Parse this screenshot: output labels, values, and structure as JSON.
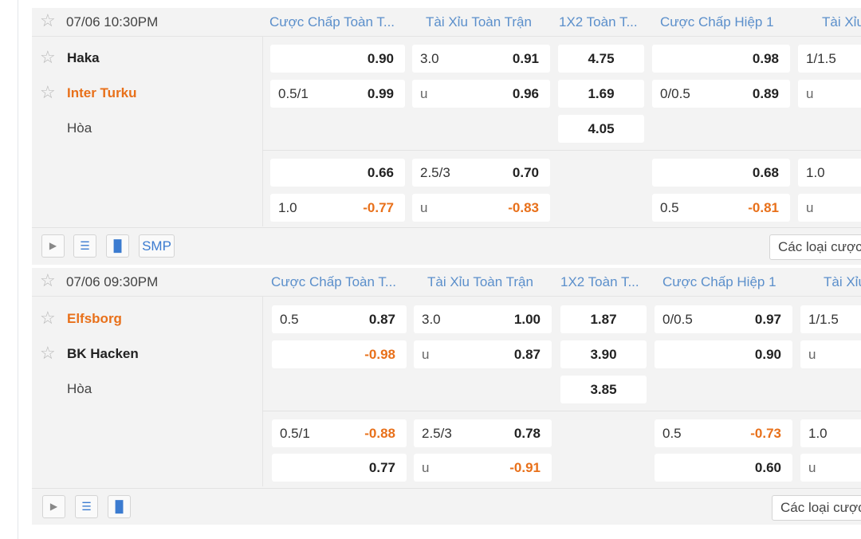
{
  "matches": [
    {
      "time": "07/06 10:30PM",
      "columns": [
        "Cược Chấp Toàn T...",
        "Tài Xỉu Toàn Trận",
        "1X2 Toàn T...",
        "Cược Chấp Hiệp 1",
        "Tài Xỉu"
      ],
      "home": "Haka",
      "away": "Inter Turku",
      "draw": "Hòa",
      "line1": {
        "ah_home": {
          "line": "",
          "odds": "0.90"
        },
        "ah_away": {
          "line": "0.5/1",
          "odds": "0.99"
        },
        "ou_over": {
          "line": "3.0",
          "odds": "0.91"
        },
        "ou_under": {
          "line": "u",
          "odds": "0.96"
        },
        "x12": [
          "4.75",
          "1.69",
          "4.05"
        ],
        "ah1_home": {
          "line": "",
          "odds": "0.98"
        },
        "ah1_away": {
          "line": "0/0.5",
          "odds": "0.89"
        },
        "ou1_over": {
          "line": "1/1.5"
        },
        "ou1_under": {
          "line": "u"
        }
      },
      "line2": {
        "ah_home": {
          "line": "",
          "odds": "0.66"
        },
        "ah_away": {
          "line": "1.0",
          "odds": "-0.77"
        },
        "ou_over": {
          "line": "2.5/3",
          "odds": "0.70"
        },
        "ou_under": {
          "line": "u",
          "odds": "-0.83"
        },
        "ah1_home": {
          "line": "",
          "odds": "0.68"
        },
        "ah1_away": {
          "line": "0.5",
          "odds": "-0.81"
        },
        "ou1_over": {
          "line": "1.0"
        },
        "ou1_under": {
          "line": "u"
        }
      },
      "toolbar": {
        "smp": "SMP",
        "more": "Các loại cược"
      }
    },
    {
      "time": "07/06 09:30PM",
      "columns": [
        "Cược Chấp Toàn T...",
        "Tài Xỉu Toàn Trận",
        "1X2 Toàn T...",
        "Cược Chấp Hiệp 1",
        "Tài Xỉu"
      ],
      "home": "Elfsborg",
      "away": "BK Hacken",
      "draw": "Hòa",
      "line1": {
        "ah_home": {
          "line": "0.5",
          "odds": "0.87"
        },
        "ah_away": {
          "line": "",
          "odds": "-0.98"
        },
        "ou_over": {
          "line": "3.0",
          "odds": "1.00"
        },
        "ou_under": {
          "line": "u",
          "odds": "0.87"
        },
        "x12": [
          "1.87",
          "3.90",
          "3.85"
        ],
        "ah1_home": {
          "line": "0/0.5",
          "odds": "0.97"
        },
        "ah1_away": {
          "line": "",
          "odds": "0.90"
        },
        "ou1_over": {
          "line": "1/1.5"
        },
        "ou1_under": {
          "line": "u"
        }
      },
      "line2": {
        "ah_home": {
          "line": "0.5/1",
          "odds": "-0.88"
        },
        "ah_away": {
          "line": "",
          "odds": "0.77"
        },
        "ou_over": {
          "line": "2.5/3",
          "odds": "0.78"
        },
        "ou_under": {
          "line": "u",
          "odds": "-0.91"
        },
        "ah1_home": {
          "line": "0.5",
          "odds": "-0.73"
        },
        "ah1_away": {
          "line": "",
          "odds": "0.60"
        },
        "ou1_over": {
          "line": "1.0"
        },
        "ou1_under": {
          "line": "u"
        }
      },
      "toolbar": {
        "more": "Các loại cược"
      }
    }
  ]
}
